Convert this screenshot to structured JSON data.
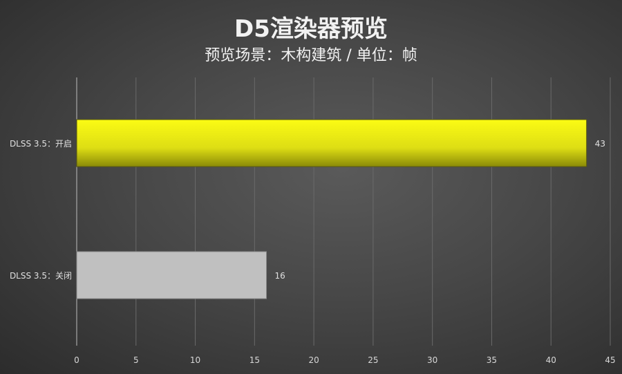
{
  "chart_data": {
    "type": "bar",
    "orientation": "horizontal",
    "title": "D5渲染器预览",
    "subtitle": "预览场景：木构建筑 / 单位：帧",
    "categories": [
      "DLSS 3.5：开启",
      "DLSS 3.5：关闭"
    ],
    "values": [
      43,
      16
    ],
    "colors": [
      "#f5f514",
      "#c0c0c0"
    ],
    "xlim": [
      0,
      45
    ],
    "xticks": [
      0,
      5,
      10,
      15,
      20,
      25,
      30,
      35,
      40,
      45
    ],
    "grid": true,
    "data_labels": true
  }
}
